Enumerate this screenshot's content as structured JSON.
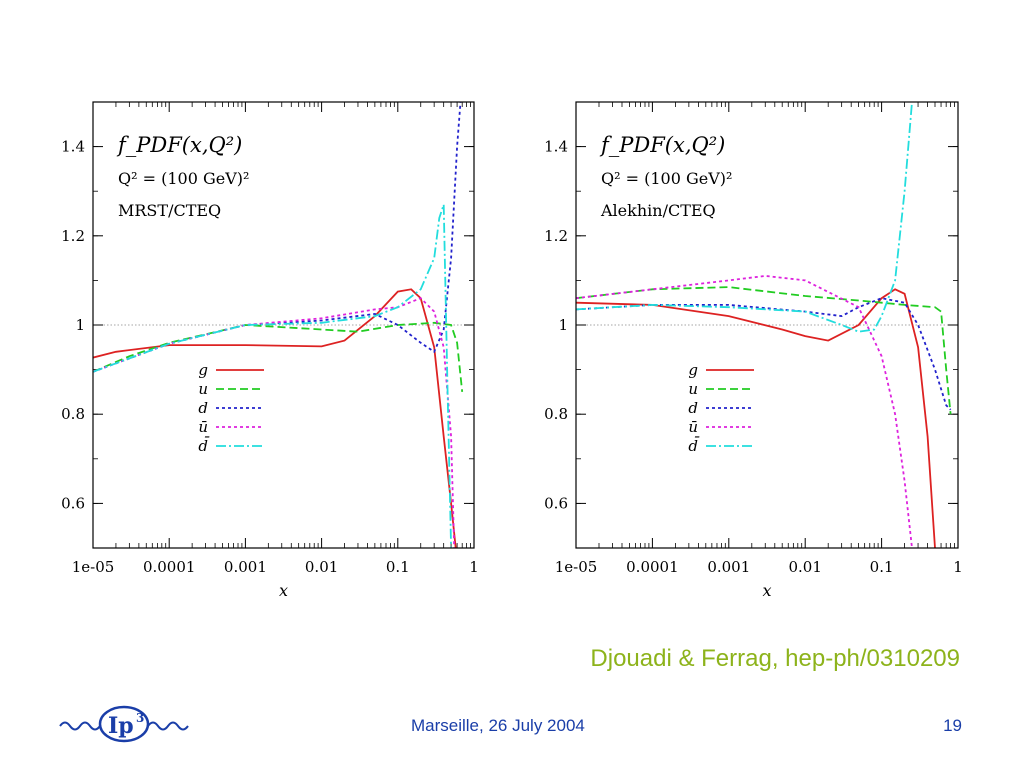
{
  "chart_data": [
    {
      "type": "line",
      "title_lines": [
        "f_PDF(x,Q²)",
        "Q² = (100 GeV)²",
        "MRST/CTEQ"
      ],
      "xlabel": "x",
      "ylabel": "",
      "xscale": "log",
      "xlim": [
        1e-05,
        1
      ],
      "ylim": [
        0.5,
        1.5
      ],
      "x_tick_labels": [
        "1e-05",
        "0.0001",
        "0.001",
        "0.01",
        "0.1",
        "1"
      ],
      "y_tick_labels": [
        "0.6",
        "0.8",
        "1",
        "1.2",
        "1.4"
      ],
      "reference_line": 1,
      "legend_position": "center",
      "series": [
        {
          "name": "g",
          "color": "#dd2222",
          "dash": "solid",
          "points": [
            [
              1e-05,
              0.927
            ],
            [
              2e-05,
              0.94
            ],
            [
              0.0001,
              0.955
            ],
            [
              0.001,
              0.955
            ],
            [
              0.01,
              0.952
            ],
            [
              0.02,
              0.965
            ],
            [
              0.05,
              1.02
            ],
            [
              0.1,
              1.075
            ],
            [
              0.15,
              1.08
            ],
            [
              0.2,
              1.06
            ],
            [
              0.3,
              0.95
            ],
            [
              0.4,
              0.75
            ],
            [
              0.5,
              0.6
            ],
            [
              0.6,
              0.47
            ]
          ]
        },
        {
          "name": "u",
          "color": "#22cc22",
          "dash": "dashed",
          "points": [
            [
              1e-05,
              0.895
            ],
            [
              3e-05,
              0.93
            ],
            [
              0.0001,
              0.96
            ],
            [
              0.001,
              1.0
            ],
            [
              0.01,
              0.99
            ],
            [
              0.03,
              0.985
            ],
            [
              0.1,
              1.0
            ],
            [
              0.3,
              1.005
            ],
            [
              0.5,
              1.0
            ],
            [
              0.6,
              0.96
            ],
            [
              0.7,
              0.85
            ]
          ]
        },
        {
          "name": "d",
          "color": "#2222cc",
          "dash": "dotted",
          "points": [
            [
              1e-05,
              0.895
            ],
            [
              0.0001,
              0.958
            ],
            [
              0.001,
              1.0
            ],
            [
              0.01,
              1.01
            ],
            [
              0.05,
              1.025
            ],
            [
              0.1,
              1.0
            ],
            [
              0.2,
              0.96
            ],
            [
              0.3,
              0.94
            ],
            [
              0.4,
              0.99
            ],
            [
              0.5,
              1.15
            ],
            [
              0.6,
              1.4
            ],
            [
              0.7,
              1.55
            ]
          ]
        },
        {
          "name": "ū",
          "color": "#dd22dd",
          "dash": "dotted",
          "points": [
            [
              1e-05,
              0.895
            ],
            [
              0.0001,
              0.958
            ],
            [
              0.001,
              1.0
            ],
            [
              0.01,
              1.015
            ],
            [
              0.05,
              1.035
            ],
            [
              0.1,
              1.04
            ],
            [
              0.2,
              1.06
            ],
            [
              0.3,
              1.03
            ],
            [
              0.4,
              0.95
            ],
            [
              0.5,
              0.75
            ],
            [
              0.55,
              0.5
            ]
          ]
        },
        {
          "name": "d̄",
          "color": "#22dddd",
          "dash": "dashdot",
          "points": [
            [
              1e-05,
              0.895
            ],
            [
              0.0001,
              0.958
            ],
            [
              0.001,
              1.0
            ],
            [
              0.01,
              1.005
            ],
            [
              0.05,
              1.02
            ],
            [
              0.1,
              1.04
            ],
            [
              0.2,
              1.08
            ],
            [
              0.3,
              1.15
            ],
            [
              0.35,
              1.24
            ],
            [
              0.4,
              1.27
            ],
            [
              0.45,
              0.85
            ],
            [
              0.5,
              0.5
            ]
          ]
        }
      ]
    },
    {
      "type": "line",
      "title_lines": [
        "f_PDF(x,Q²)",
        "Q² = (100 GeV)²",
        "Alekhin/CTEQ"
      ],
      "xlabel": "x",
      "ylabel": "",
      "xscale": "log",
      "xlim": [
        1e-05,
        1
      ],
      "ylim": [
        0.5,
        1.5
      ],
      "x_tick_labels": [
        "1e-05",
        "0.0001",
        "0.001",
        "0.01",
        "0.1",
        "1"
      ],
      "y_tick_labels": [
        "0.6",
        "0.8",
        "1",
        "1.2",
        "1.4"
      ],
      "reference_line": 1,
      "legend_position": "center-right",
      "series": [
        {
          "name": "g",
          "color": "#dd2222",
          "dash": "solid",
          "points": [
            [
              1e-05,
              1.05
            ],
            [
              0.0001,
              1.045
            ],
            [
              0.001,
              1.02
            ],
            [
              0.005,
              0.99
            ],
            [
              0.01,
              0.975
            ],
            [
              0.02,
              0.965
            ],
            [
              0.05,
              1.0
            ],
            [
              0.1,
              1.06
            ],
            [
              0.15,
              1.08
            ],
            [
              0.2,
              1.07
            ],
            [
              0.3,
              0.95
            ],
            [
              0.4,
              0.75
            ],
            [
              0.5,
              0.5
            ]
          ]
        },
        {
          "name": "u",
          "color": "#22cc22",
          "dash": "dashed",
          "points": [
            [
              1e-05,
              1.06
            ],
            [
              0.0001,
              1.08
            ],
            [
              0.001,
              1.085
            ],
            [
              0.01,
              1.065
            ],
            [
              0.05,
              1.055
            ],
            [
              0.1,
              1.05
            ],
            [
              0.2,
              1.045
            ],
            [
              0.5,
              1.04
            ],
            [
              0.6,
              1.03
            ],
            [
              0.7,
              0.9
            ],
            [
              0.8,
              0.8
            ]
          ]
        },
        {
          "name": "d",
          "color": "#2222cc",
          "dash": "dotted",
          "points": [
            [
              1e-05,
              1.035
            ],
            [
              0.0001,
              1.045
            ],
            [
              0.001,
              1.045
            ],
            [
              0.01,
              1.03
            ],
            [
              0.03,
              1.02
            ],
            [
              0.05,
              1.04
            ],
            [
              0.1,
              1.06
            ],
            [
              0.2,
              1.05
            ],
            [
              0.3,
              1.0
            ],
            [
              0.5,
              0.9
            ],
            [
              0.7,
              0.82
            ],
            [
              0.8,
              0.81
            ]
          ]
        },
        {
          "name": "ū",
          "color": "#dd22dd",
          "dash": "dotted",
          "points": [
            [
              1e-05,
              1.06
            ],
            [
              0.0001,
              1.08
            ],
            [
              0.001,
              1.1
            ],
            [
              0.003,
              1.11
            ],
            [
              0.01,
              1.1
            ],
            [
              0.05,
              1.04
            ],
            [
              0.1,
              0.93
            ],
            [
              0.15,
              0.8
            ],
            [
              0.2,
              0.65
            ],
            [
              0.25,
              0.5
            ]
          ]
        },
        {
          "name": "d̄",
          "color": "#22dddd",
          "dash": "dashdot",
          "points": [
            [
              1e-05,
              1.035
            ],
            [
              0.0001,
              1.045
            ],
            [
              0.001,
              1.04
            ],
            [
              0.01,
              1.03
            ],
            [
              0.03,
              1.0
            ],
            [
              0.05,
              0.985
            ],
            [
              0.08,
              0.99
            ],
            [
              0.1,
              1.02
            ],
            [
              0.15,
              1.1
            ],
            [
              0.2,
              1.3
            ],
            [
              0.25,
              1.5
            ]
          ]
        }
      ]
    }
  ],
  "citation": "Djouadi & Ferrag, hep-ph/0310209",
  "footer": {
    "venue": "Marseille, 26 July 2004",
    "page_number": "19",
    "logo_text": "Ip",
    "logo_superscript": "3"
  }
}
